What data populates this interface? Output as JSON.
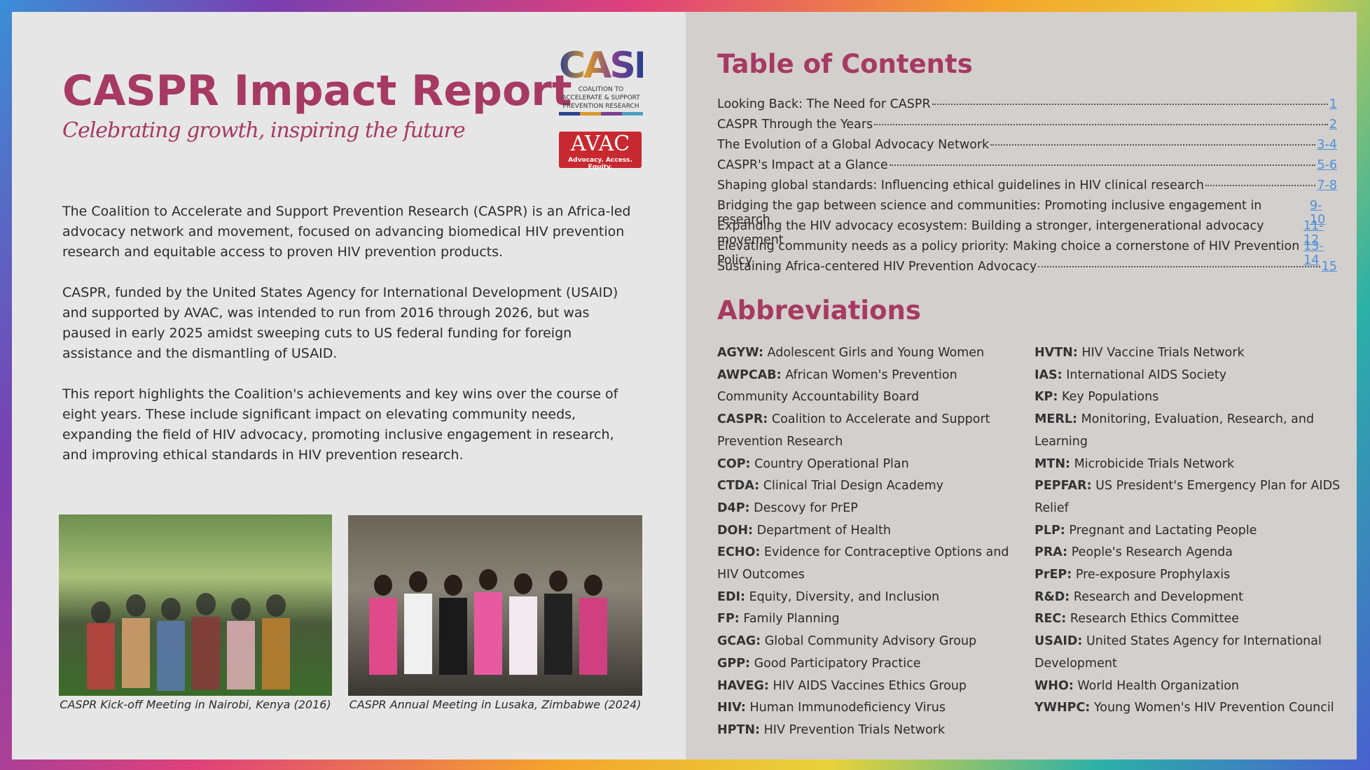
{
  "header": {
    "title": "CASPR Impact Report",
    "subtitle": "Celebrating growth, inspiring the future"
  },
  "logos": {
    "caspr": {
      "name": "CASPR",
      "tagline": "COALITION TO ACCELERATE & SUPPORT PREVENTION RESEARCH"
    },
    "avac": {
      "name": "AVAC",
      "tagline": "Advocacy. Access. Equity."
    }
  },
  "paragraphs": [
    "The Coalition to Accelerate and Support Prevention Research (CASPR) is an Africa-led advocacy network and movement, focused on advancing biomedical HIV prevention research and equitable access to proven HIV prevention products.",
    "CASPR, funded by the United States Agency for International Development (USAID) and supported by AVAC, was intended to run from 2016 through 2026, but was paused in early 2025 amidst sweeping cuts to US federal funding for foreign assistance and the dismantling of USAID.",
    "This report highlights the Coalition's achievements and key wins over the course of eight years. These include significant impact on elevating community needs, expanding the field of HIV advocacy, promoting inclusive engagement in research, and improving ethical standards in HIV prevention research."
  ],
  "photos": [
    {
      "caption": "CASPR Kick-off Meeting in Nairobi, Kenya (2016)"
    },
    {
      "caption": "CASPR Annual Meeting in Lusaka, Zimbabwe (2024)"
    }
  ],
  "toc": {
    "title": "Table of Contents",
    "entries": [
      {
        "title": "Looking Back: The Need for CASPR",
        "pages": "1"
      },
      {
        "title": "CASPR Through the Years",
        "pages": "2"
      },
      {
        "title": "The Evolution of a Global Advocacy Network",
        "pages": "3-4"
      },
      {
        "title": "CASPR's Impact at a Glance",
        "pages": "5-6"
      },
      {
        "title": "Shaping global standards: Influencing ethical guidelines in HIV clinical research",
        "pages": "7-8"
      },
      {
        "title": "Bridging the gap between science and communities: Promoting inclusive engagement in research",
        "pages": "9-10"
      },
      {
        "title": "Expanding the HIV advocacy ecosystem: Building a stronger, intergenerational advocacy movement",
        "pages": "11-12"
      },
      {
        "title": "Elevating community needs as a policy priority: Making choice a cornerstone of HIV Prevention Policy",
        "pages": "13-14"
      },
      {
        "title": "Sustaining Africa-centered HIV Prevention Advocacy",
        "pages": "15"
      }
    ]
  },
  "abbreviations": {
    "title": "Abbreviations",
    "columns": [
      [
        {
          "term": "AGYW:",
          "definition": "Adolescent Girls and Young Women"
        },
        {
          "term": "AWPCAB:",
          "definition": "African Women's Prevention Community Accountability Board"
        },
        {
          "term": "CASPR:",
          "definition": "Coalition to Accelerate and Support Prevention Research"
        },
        {
          "term": "COP:",
          "definition": "Country Operational Plan"
        },
        {
          "term": "CTDA:",
          "definition": "Clinical Trial Design Academy"
        },
        {
          "term": "D4P:",
          "definition": "Descovy for PrEP"
        },
        {
          "term": "DOH:",
          "definition": "Department of Health"
        },
        {
          "term": "ECHO:",
          "definition": "Evidence for Contraceptive Options and HIV Outcomes"
        },
        {
          "term": "EDI:",
          "definition": "Equity, Diversity, and Inclusion"
        },
        {
          "term": "FP:",
          "definition": "Family Planning"
        },
        {
          "term": "GCAG:",
          "definition": "Global Community Advisory Group"
        },
        {
          "term": "GPP:",
          "definition": "Good Participatory Practice"
        },
        {
          "term": "HAVEG:",
          "definition": "HIV AIDS Vaccines Ethics Group"
        },
        {
          "term": "HIV:",
          "definition": "Human Immunodeficiency Virus"
        },
        {
          "term": "HPTN:",
          "definition": "HIV Prevention Trials Network"
        }
      ],
      [
        {
          "term": "HVTN:",
          "definition": "HIV Vaccine Trials Network"
        },
        {
          "term": "IAS:",
          "definition": "International AIDS Society"
        },
        {
          "term": "KP:",
          "definition": "Key Populations"
        },
        {
          "term": "MERL:",
          "definition": "Monitoring, Evaluation, Research, and Learning"
        },
        {
          "term": "MTN:",
          "definition": "Microbicide Trials Network"
        },
        {
          "term": "PEPFAR:",
          "definition": "US President's Emergency Plan for AIDS Relief"
        },
        {
          "term": "PLP:",
          "definition": "Pregnant and Lactating People"
        },
        {
          "term": "PRA:",
          "definition": "People's Research Agenda"
        },
        {
          "term": "PrEP:",
          "definition": "Pre-exposure Prophylaxis"
        },
        {
          "term": "R&D:",
          "definition": "Research and Development"
        },
        {
          "term": "REC:",
          "definition": "Research Ethics Committee"
        },
        {
          "term": "USAID:",
          "definition": "United States Agency for International Development"
        },
        {
          "term": "WHO:",
          "definition": "World Health Organization"
        },
        {
          "term": "YWHPC:",
          "definition": "Young Women's HIV Prevention Council"
        }
      ]
    ]
  }
}
